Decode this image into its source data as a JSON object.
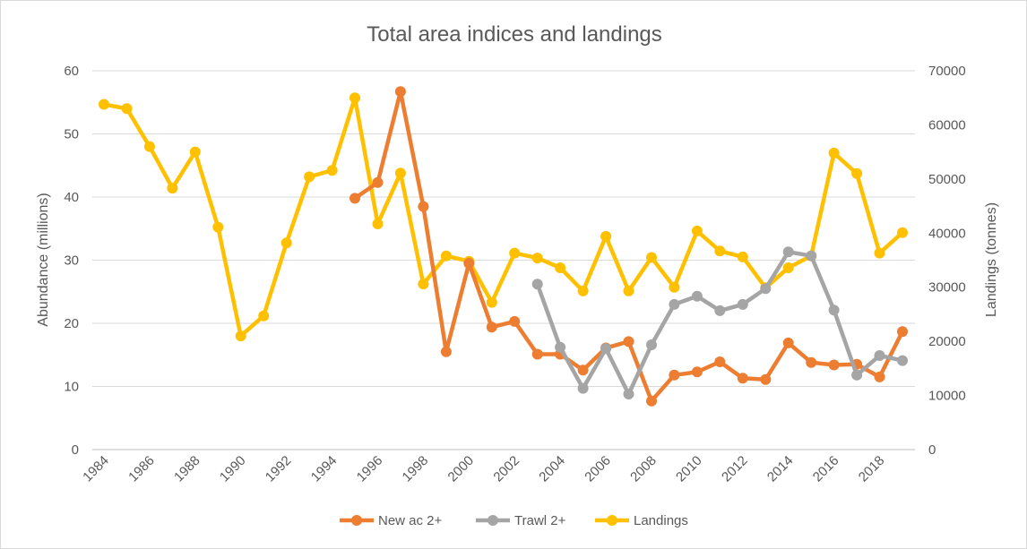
{
  "chart_data": {
    "type": "line",
    "title": "Total area indices and landings",
    "ylabel": "Abundance (millions)",
    "y2label": "Landings (tonnes)",
    "ylim": [
      0,
      60
    ],
    "y2lim": [
      0,
      70000
    ],
    "xlim": [
      1984,
      2019
    ],
    "yticks": [
      "0",
      "10",
      "20",
      "30",
      "40",
      "50",
      "60"
    ],
    "y2ticks": [
      "0",
      "10000",
      "20000",
      "30000",
      "40000",
      "50000",
      "60000",
      "70000"
    ],
    "xticks": [
      "1984",
      "1986",
      "1988",
      "1990",
      "1992",
      "1994",
      "1996",
      "1998",
      "2000",
      "2002",
      "2004",
      "2006",
      "2008",
      "2010",
      "2012",
      "2014",
      "2016",
      "2018"
    ],
    "grid": true,
    "legend_position": "bottom",
    "series": [
      {
        "name": "New ac 2+",
        "axis": "left",
        "color": "#ED7D31",
        "x": [
          1995,
          1996,
          1997,
          1998,
          1999,
          2000,
          2001,
          2002,
          2003,
          2004,
          2005,
          2006,
          2007,
          2008,
          2009,
          2010,
          2011,
          2012,
          2013,
          2014,
          2015,
          2016,
          2017,
          2018,
          2019
        ],
        "values": [
          39.8,
          42.3,
          56.7,
          38.5,
          15.5,
          29.5,
          19.4,
          20.3,
          15.1,
          15.1,
          12.6,
          16.1,
          17.1,
          7.7,
          11.8,
          12.3,
          13.9,
          11.3,
          11.1,
          16.9,
          13.8,
          13.4,
          13.5,
          11.5,
          18.7
        ]
      },
      {
        "name": "Trawl 2+",
        "axis": "left",
        "color": "#A5A5A5",
        "x": [
          2003,
          2004,
          2005,
          2006,
          2007,
          2008,
          2009,
          2010,
          2011,
          2012,
          2013,
          2014,
          2015,
          2016,
          2017,
          2018,
          2019
        ],
        "values": [
          26.2,
          16.2,
          9.7,
          16.0,
          8.8,
          16.6,
          23.0,
          24.3,
          22.0,
          23.0,
          25.5,
          31.3,
          30.7,
          22.1,
          11.8,
          14.9,
          14.1
        ]
      },
      {
        "name": "Landings",
        "axis": "right",
        "color": "#FFC000",
        "x": [
          1984,
          1985,
          1986,
          1987,
          1988,
          1989,
          1990,
          1991,
          1992,
          1993,
          1994,
          1995,
          1996,
          1997,
          1998,
          1999,
          2000,
          2001,
          2002,
          2003,
          2004,
          2005,
          2006,
          2007,
          2008,
          2009,
          2010,
          2011,
          2012,
          2013,
          2014,
          2015,
          2016,
          2017,
          2018,
          2019
        ],
        "values": [
          63800,
          63000,
          56000,
          48300,
          55000,
          41100,
          21000,
          24700,
          38200,
          50400,
          51600,
          65000,
          41700,
          51100,
          30600,
          35800,
          34800,
          27200,
          36300,
          35400,
          33600,
          29300,
          39400,
          29300,
          35500,
          30000,
          40400,
          36700,
          35600,
          29900,
          33600,
          35800,
          54800,
          51000,
          36300,
          40100
        ]
      }
    ]
  }
}
